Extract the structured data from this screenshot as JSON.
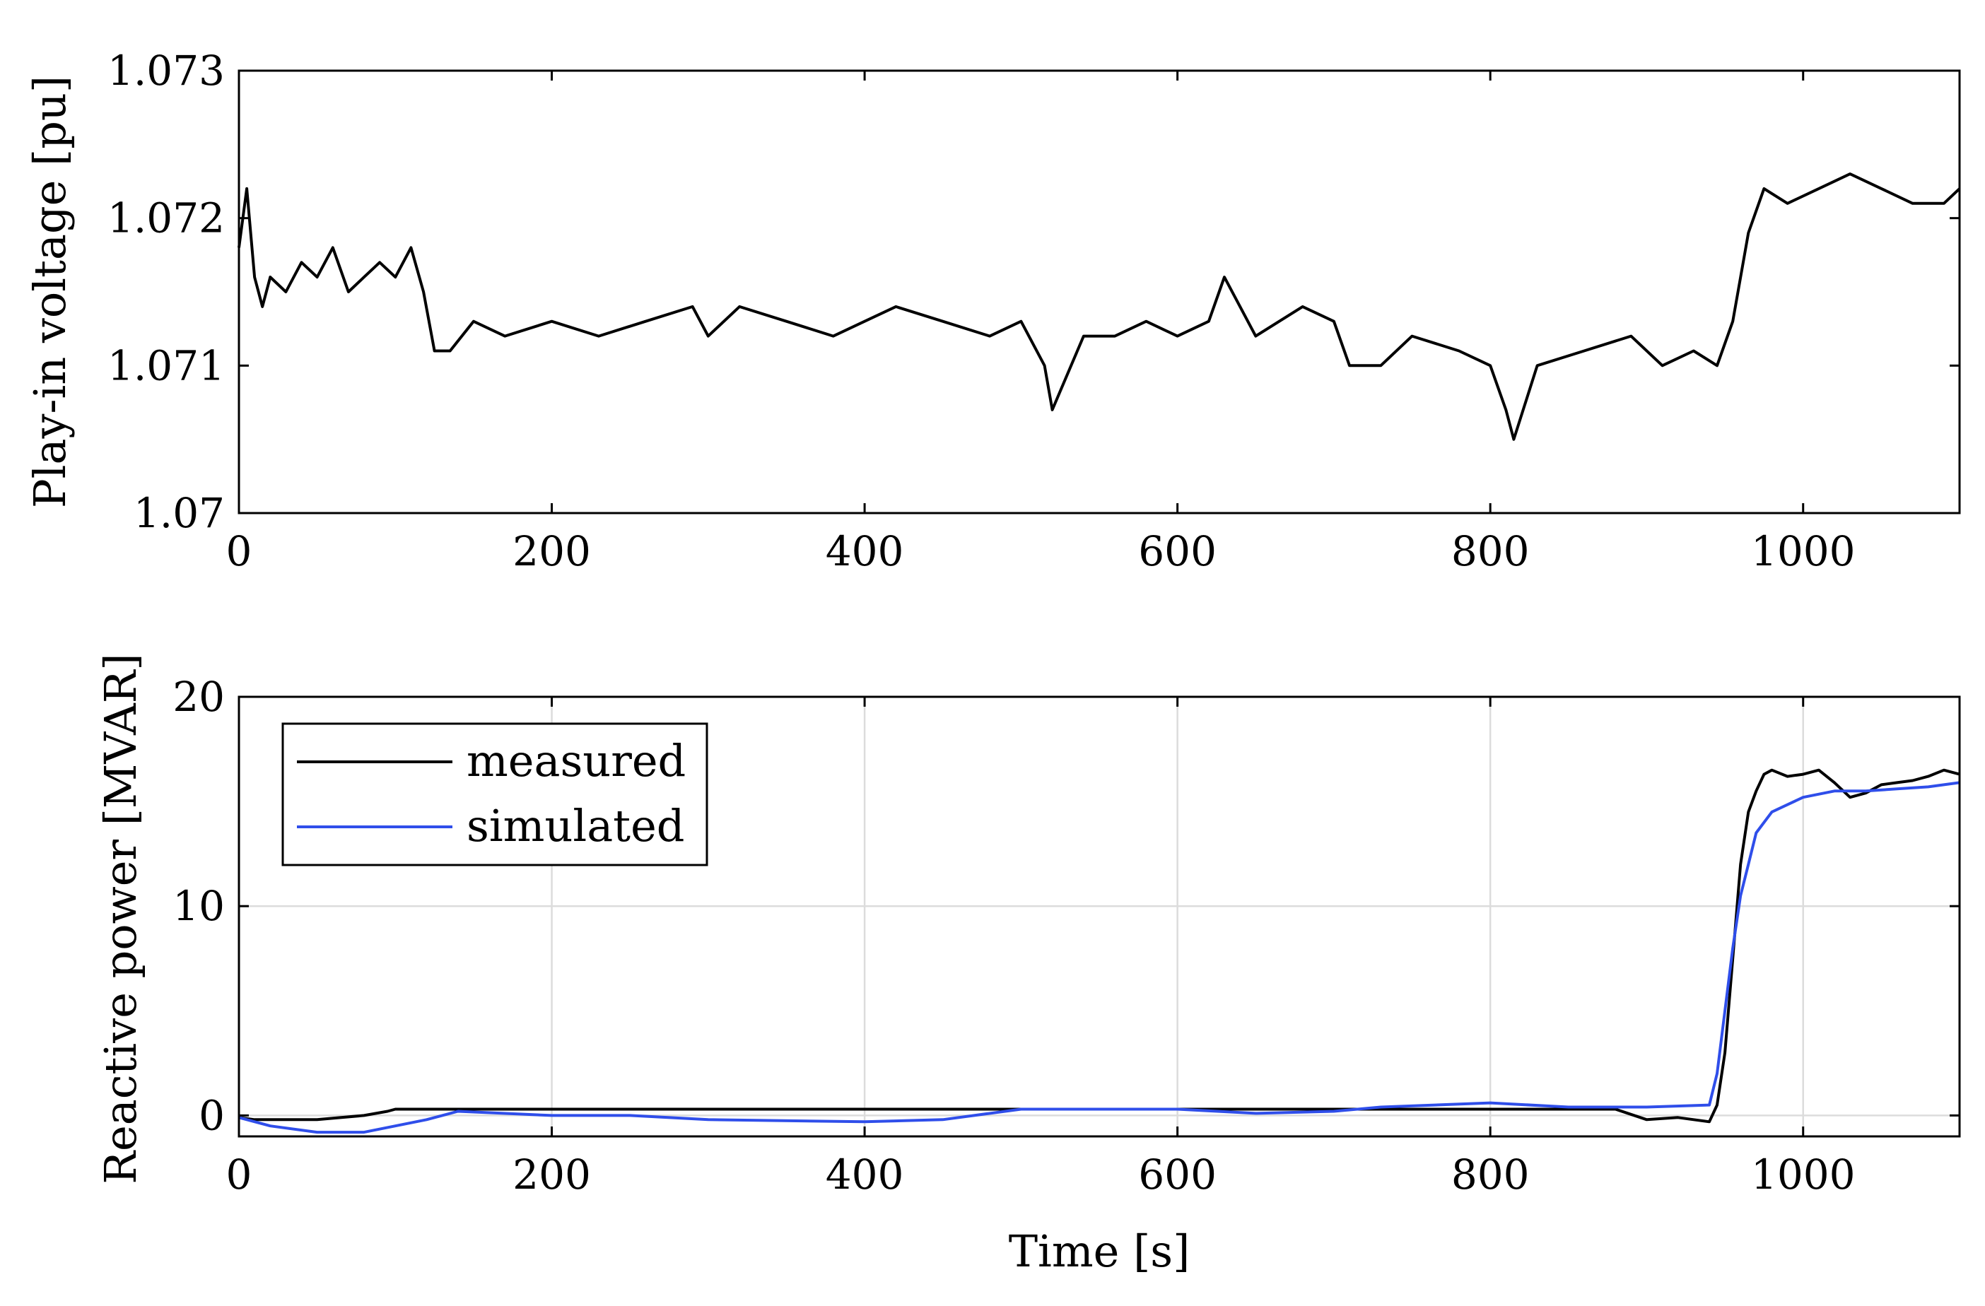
{
  "chart_data": [
    {
      "type": "line",
      "id": "top",
      "xlabel": "",
      "ylabel": "Play-in voltage [pu]",
      "xlim": [
        0,
        1100
      ],
      "ylim": [
        1.07,
        1.073
      ],
      "xticks": [
        0,
        200,
        400,
        600,
        800,
        1000
      ],
      "yticks": [
        1.07,
        1.071,
        1.072,
        1.073
      ],
      "xtick_labels": [
        "0",
        "200",
        "400",
        "600",
        "800",
        "1000"
      ],
      "ytick_labels": [
        "1.07",
        "1.071",
        "1.072",
        "1.073"
      ],
      "grid": false,
      "series": [
        {
          "name": "Play-in voltage",
          "color": "#000000",
          "x": [
            0,
            5,
            10,
            15,
            20,
            30,
            40,
            50,
            60,
            70,
            80,
            90,
            100,
            110,
            118,
            125,
            135,
            150,
            170,
            200,
            230,
            260,
            290,
            300,
            320,
            350,
            380,
            400,
            420,
            450,
            480,
            500,
            515,
            520,
            540,
            560,
            580,
            600,
            620,
            630,
            650,
            680,
            700,
            710,
            730,
            750,
            780,
            800,
            810,
            815,
            830,
            860,
            890,
            910,
            930,
            945,
            955,
            965,
            975,
            990,
            1010,
            1030,
            1050,
            1070,
            1090,
            1100
          ],
          "y": [
            1.0718,
            1.0722,
            1.0716,
            1.0714,
            1.0716,
            1.0715,
            1.0717,
            1.0716,
            1.0718,
            1.0715,
            1.0716,
            1.0717,
            1.0716,
            1.0718,
            1.0715,
            1.0711,
            1.0711,
            1.0713,
            1.0712,
            1.0713,
            1.0712,
            1.0713,
            1.0714,
            1.0712,
            1.0714,
            1.0713,
            1.0712,
            1.0713,
            1.0714,
            1.0713,
            1.0712,
            1.0713,
            1.071,
            1.0707,
            1.0712,
            1.0712,
            1.0713,
            1.0712,
            1.0713,
            1.0716,
            1.0712,
            1.0714,
            1.0713,
            1.071,
            1.071,
            1.0712,
            1.0711,
            1.071,
            1.0707,
            1.0705,
            1.071,
            1.0711,
            1.0712,
            1.071,
            1.0711,
            1.071,
            1.0713,
            1.0719,
            1.0722,
            1.0721,
            1.0722,
            1.0723,
            1.0722,
            1.0721,
            1.0721,
            1.0722
          ]
        }
      ]
    },
    {
      "type": "line",
      "id": "bottom",
      "xlabel": "Time [s]",
      "ylabel": "Reactive power [MVAR]",
      "xlim": [
        0,
        1100
      ],
      "ylim": [
        -1,
        20
      ],
      "xticks": [
        0,
        200,
        400,
        600,
        800,
        1000
      ],
      "yticks": [
        0,
        10,
        20
      ],
      "xtick_labels": [
        "0",
        "200",
        "400",
        "600",
        "800",
        "1000"
      ],
      "ytick_labels": [
        "0",
        "10",
        "20"
      ],
      "grid": true,
      "legend_position": "top-left",
      "series": [
        {
          "name": "measured",
          "color": "#000000",
          "x": [
            0,
            10,
            50,
            80,
            95,
            100,
            200,
            300,
            400,
            500,
            600,
            700,
            800,
            880,
            900,
            920,
            940,
            945,
            950,
            955,
            960,
            965,
            970,
            975,
            980,
            990,
            1000,
            1010,
            1020,
            1030,
            1040,
            1050,
            1060,
            1070,
            1080,
            1090,
            1100
          ],
          "y": [
            -0.1,
            -0.2,
            -0.2,
            0.0,
            0.2,
            0.3,
            0.3,
            0.3,
            0.3,
            0.3,
            0.3,
            0.3,
            0.3,
            0.3,
            -0.2,
            -0.1,
            -0.3,
            0.5,
            3.0,
            7.5,
            12.0,
            14.5,
            15.5,
            16.3,
            16.5,
            16.2,
            16.3,
            16.5,
            15.9,
            15.2,
            15.4,
            15.8,
            15.9,
            16.0,
            16.2,
            16.5,
            16.3
          ]
        },
        {
          "name": "simulated",
          "color": "#2f4eea",
          "x": [
            0,
            20,
            50,
            80,
            100,
            120,
            140,
            200,
            250,
            300,
            400,
            450,
            500,
            550,
            600,
            650,
            700,
            730,
            800,
            850,
            900,
            940,
            945,
            950,
            955,
            960,
            965,
            970,
            980,
            1000,
            1020,
            1040,
            1060,
            1080,
            1100
          ],
          "y": [
            -0.1,
            -0.5,
            -0.8,
            -0.8,
            -0.5,
            -0.2,
            0.2,
            0.0,
            0.0,
            -0.2,
            -0.3,
            -0.2,
            0.3,
            0.3,
            0.3,
            0.1,
            0.2,
            0.4,
            0.6,
            0.4,
            0.4,
            0.5,
            2.0,
            5.0,
            8.0,
            10.5,
            12.0,
            13.5,
            14.5,
            15.2,
            15.5,
            15.5,
            15.6,
            15.7,
            15.9
          ]
        }
      ]
    }
  ]
}
